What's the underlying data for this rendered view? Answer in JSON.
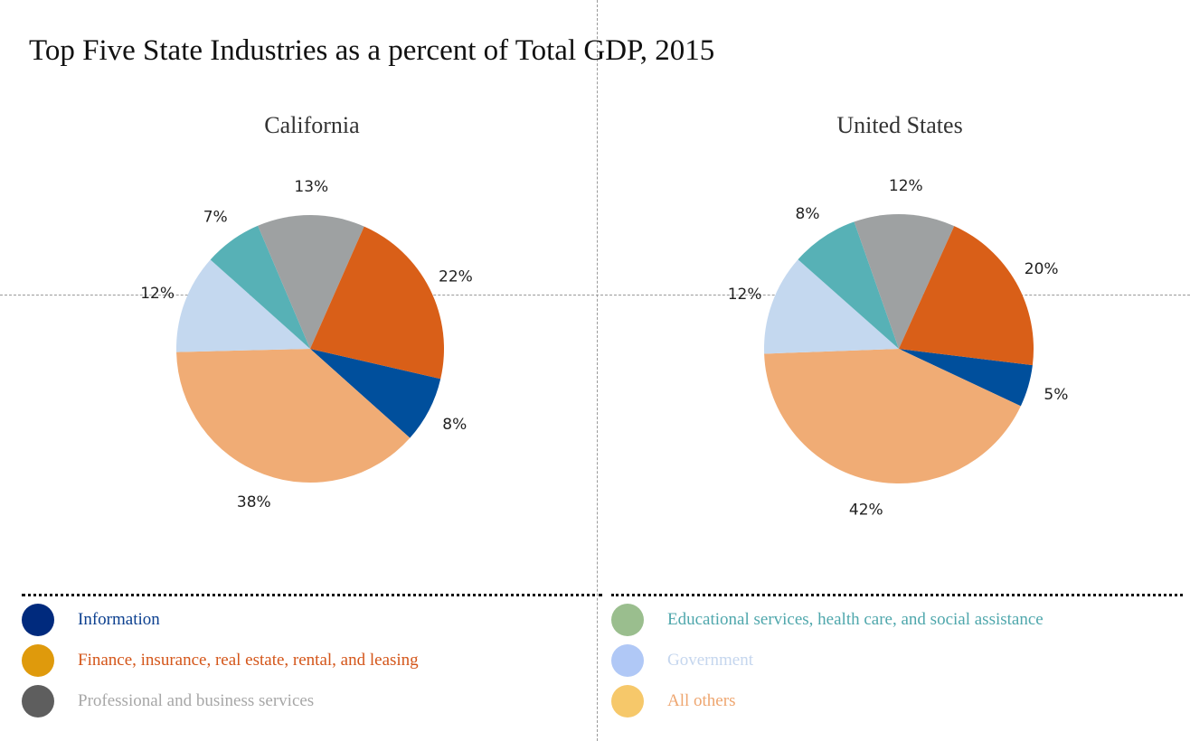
{
  "title": "Top Five State Industries as a percent of Total GDP, 2015",
  "colors": {
    "information": "#004f9c",
    "finance": "#d95f18",
    "professional": "#9ea1a2",
    "education": "#57b1b6",
    "government": "#c4d8ef",
    "all_others": "#f0ac75"
  },
  "legend": {
    "items": [
      {
        "label": "Information",
        "dot_color": "#002a7d",
        "text_color": "#0b3f8f"
      },
      {
        "label": "Finance, insurance, real estate, rental, and leasing",
        "dot_color": "#df9a0c",
        "text_color": "#d4561a"
      },
      {
        "label": "Professional and business services",
        "dot_color": "#5e5e5e",
        "text_color": "#a7a7a7"
      },
      {
        "label": "Educational services, health care, and social assistance",
        "dot_color": "#9abe8e",
        "text_color": "#4fa7ac"
      },
      {
        "label": "Government",
        "dot_color": "#b0c8f6",
        "text_color": "#c5d6ee"
      },
      {
        "label": "All others",
        "dot_color": "#f6c86a",
        "text_color": "#eea670"
      }
    ]
  },
  "chart_data": [
    {
      "type": "pie",
      "title": "California",
      "slices": [
        {
          "label": "Information",
          "value": 8,
          "display": "8%",
          "color": "#004f9c"
        },
        {
          "label": "All others",
          "value": 38,
          "display": "38%",
          "color": "#f0ac75"
        },
        {
          "label": "Government",
          "value": 12,
          "display": "12%",
          "color": "#c4d8ef"
        },
        {
          "label": "Educational services, health care, and social assistance",
          "value": 7,
          "display": "7%",
          "color": "#57b1b6"
        },
        {
          "label": "Professional and business services",
          "value": 13,
          "display": "13%",
          "color": "#9ea1a2"
        },
        {
          "label": "Finance, insurance, real estate, rental, and leasing",
          "value": 22,
          "display": "22%",
          "color": "#d95f18"
        }
      ]
    },
    {
      "type": "pie",
      "title": "United States",
      "slices": [
        {
          "label": "Information",
          "value": 5,
          "display": "5%",
          "color": "#004f9c"
        },
        {
          "label": "All others",
          "value": 42,
          "display": "42%",
          "color": "#f0ac75"
        },
        {
          "label": "Government",
          "value": 12,
          "display": "12%",
          "color": "#c4d8ef"
        },
        {
          "label": "Educational services, health care, and social assistance",
          "value": 8,
          "display": "8%",
          "color": "#57b1b6"
        },
        {
          "label": "Professional and business services",
          "value": 12,
          "display": "12%",
          "color": "#9ea1a2"
        },
        {
          "label": "Finance, insurance, real estate, rental, and leasing",
          "value": 20,
          "display": "20%",
          "color": "#d95f18"
        }
      ]
    }
  ]
}
